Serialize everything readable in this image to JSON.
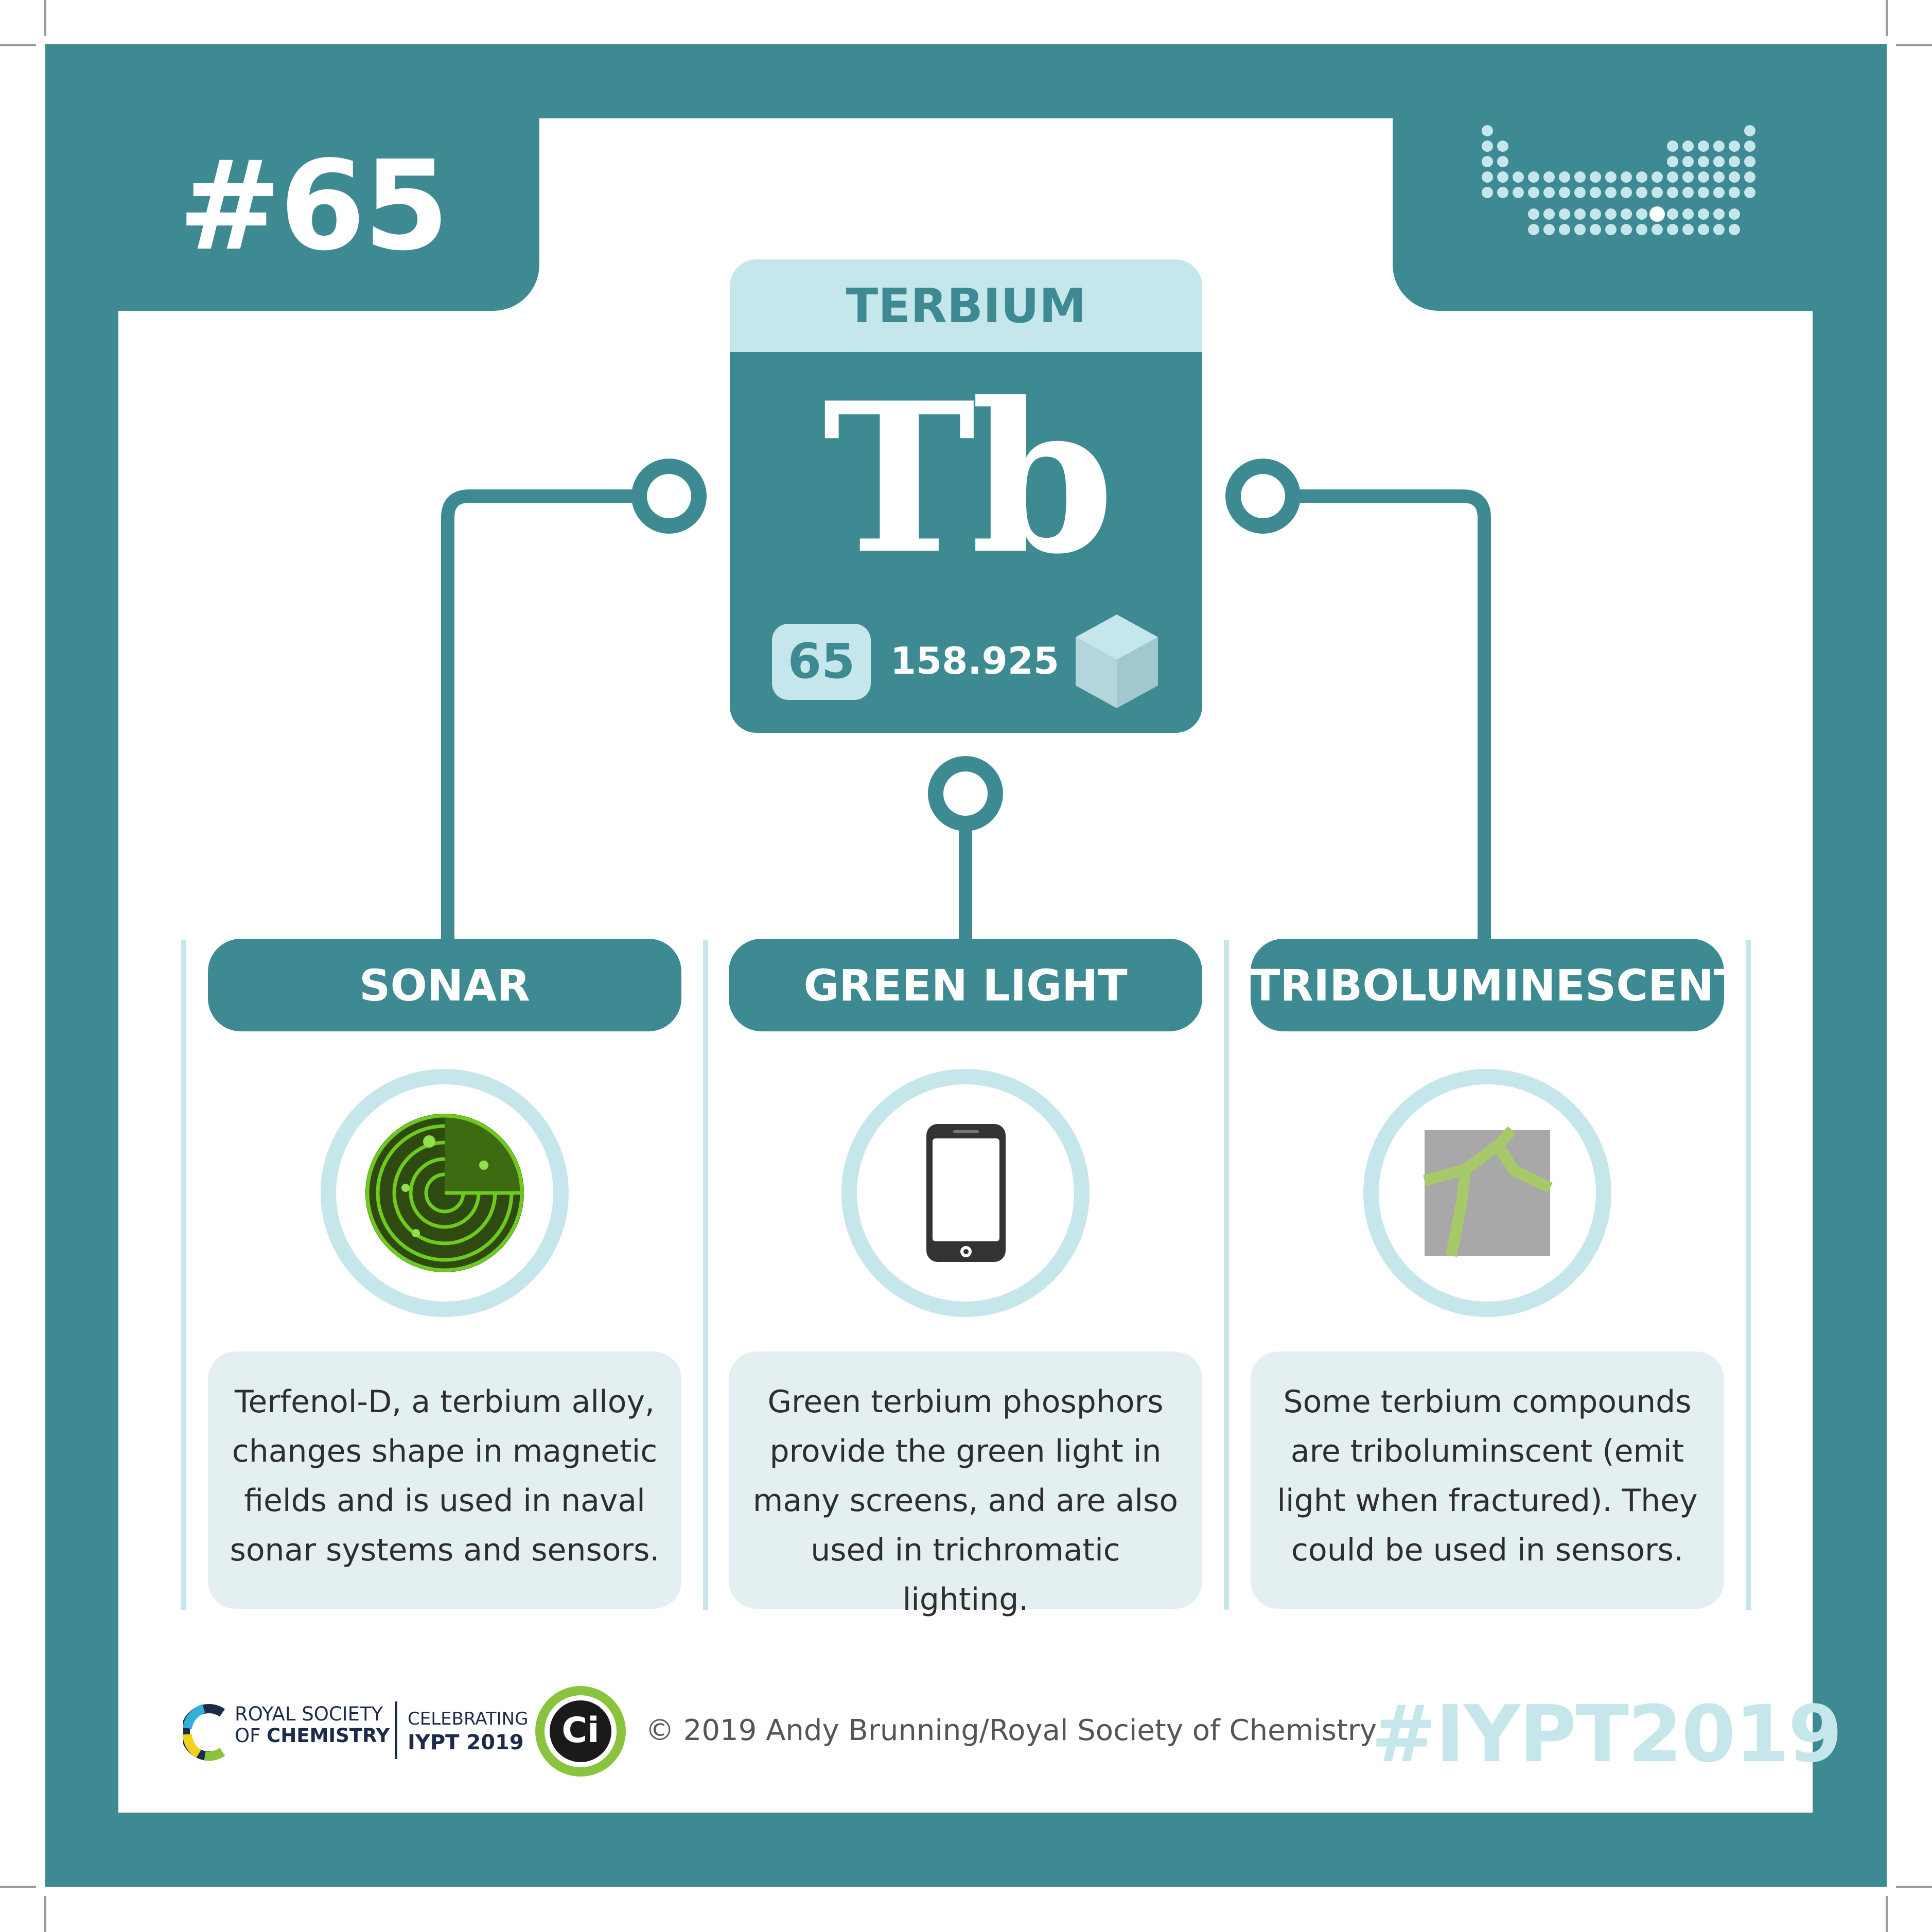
{
  "card": {
    "number": "#65"
  },
  "element": {
    "name": "TERBIUM",
    "symbol": "Tb",
    "atomic_number": "65",
    "atomic_mass": "158.925"
  },
  "sections": [
    {
      "title": "SONAR",
      "icon": "radar-icon",
      "lines": [
        "Terfenol-D, a terbium alloy,",
        "changes shape in magnetic",
        "fields and is used in naval",
        "sonar systems and sensors."
      ]
    },
    {
      "title": "GREEN LIGHT",
      "icon": "smartphone-icon",
      "lines": [
        "Green terbium phosphors",
        "provide the green light in",
        "many screens, and are also",
        "used in trichromatic lighting."
      ]
    },
    {
      "title": "TRIBOLUMINESCENT",
      "icon": "fractured-crystal-icon",
      "lines": [
        "Some terbium compounds",
        "are triboluminscent (emit",
        "light when fractured). They",
        "could be used in sensors."
      ]
    }
  ],
  "footer": {
    "rsc_line1": "ROYAL SOCIETY",
    "rsc_line2_prefix": "OF ",
    "rsc_line2_bold": "CHEMISTRY",
    "celebrating": "CELEBRATING",
    "iypt": "IYPT 2019",
    "ci_logo": "Ci",
    "copyright": "© 2019 Andy Brunning/Royal Society of Chemistry",
    "hashtag": "#IYPT2019"
  },
  "colors": {
    "teal": "#3d8a93",
    "light_teal": "#c5e6ea",
    "pale_box": "#e4eff1",
    "radar_green": "#6ecb1e",
    "crack_green": "#a6c96a"
  }
}
